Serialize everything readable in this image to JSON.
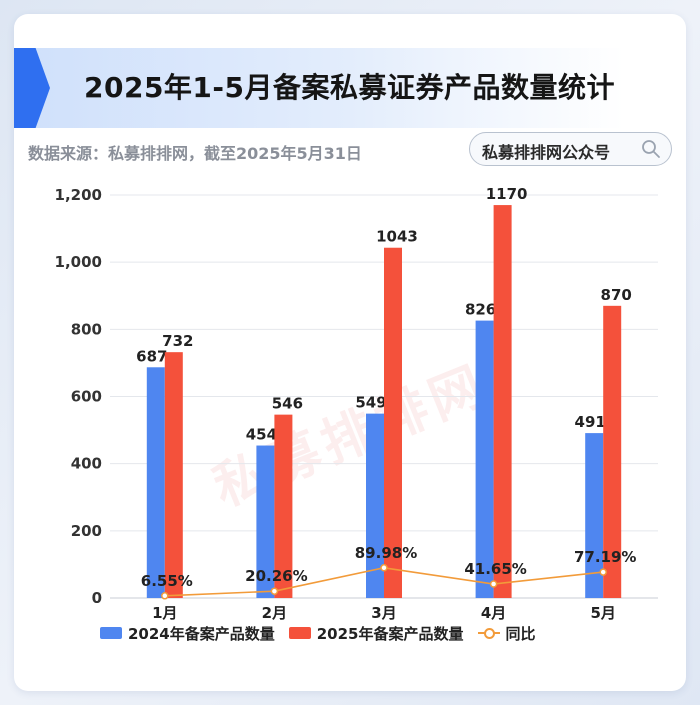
{
  "header": {
    "title": "2025年1-5月备案私募证券产品数量统计",
    "source": "数据来源：私募排排网，截至2025年5月31日",
    "search_label": "私募排排网公众号"
  },
  "watermark": "私募排排网",
  "colors": {
    "series_2024": "#4f86f0",
    "series_2025": "#f4513b",
    "yoy_line": "#f29b3a",
    "accent": "#2f6ff0"
  },
  "chart_data": {
    "type": "bar",
    "categories": [
      "1月",
      "2月",
      "3月",
      "4月",
      "5月"
    ],
    "series": [
      {
        "name": "2024年备案产品数量",
        "values": [
          687,
          454,
          549,
          826,
          491
        ]
      },
      {
        "name": "2025年备案产品数量",
        "values": [
          732,
          546,
          1043,
          1170,
          870
        ]
      }
    ],
    "line_series": {
      "name": "同比",
      "values": [
        6.55,
        20.26,
        89.98,
        41.65,
        77.19
      ],
      "labels": [
        "6.55%",
        "20.26%",
        "89.98%",
        "41.65%",
        "77.19%"
      ]
    },
    "bar_labels": [
      [
        "687",
        "454",
        "549",
        "826",
        "491"
      ],
      [
        "732",
        "546",
        "1043",
        "1170",
        "870"
      ]
    ],
    "y_ticks": [
      "0",
      "200",
      "400",
      "600",
      "800",
      "1,000",
      "1,200"
    ],
    "ylim": [
      0,
      1200
    ],
    "grid": true,
    "legend_position": "bottom"
  }
}
